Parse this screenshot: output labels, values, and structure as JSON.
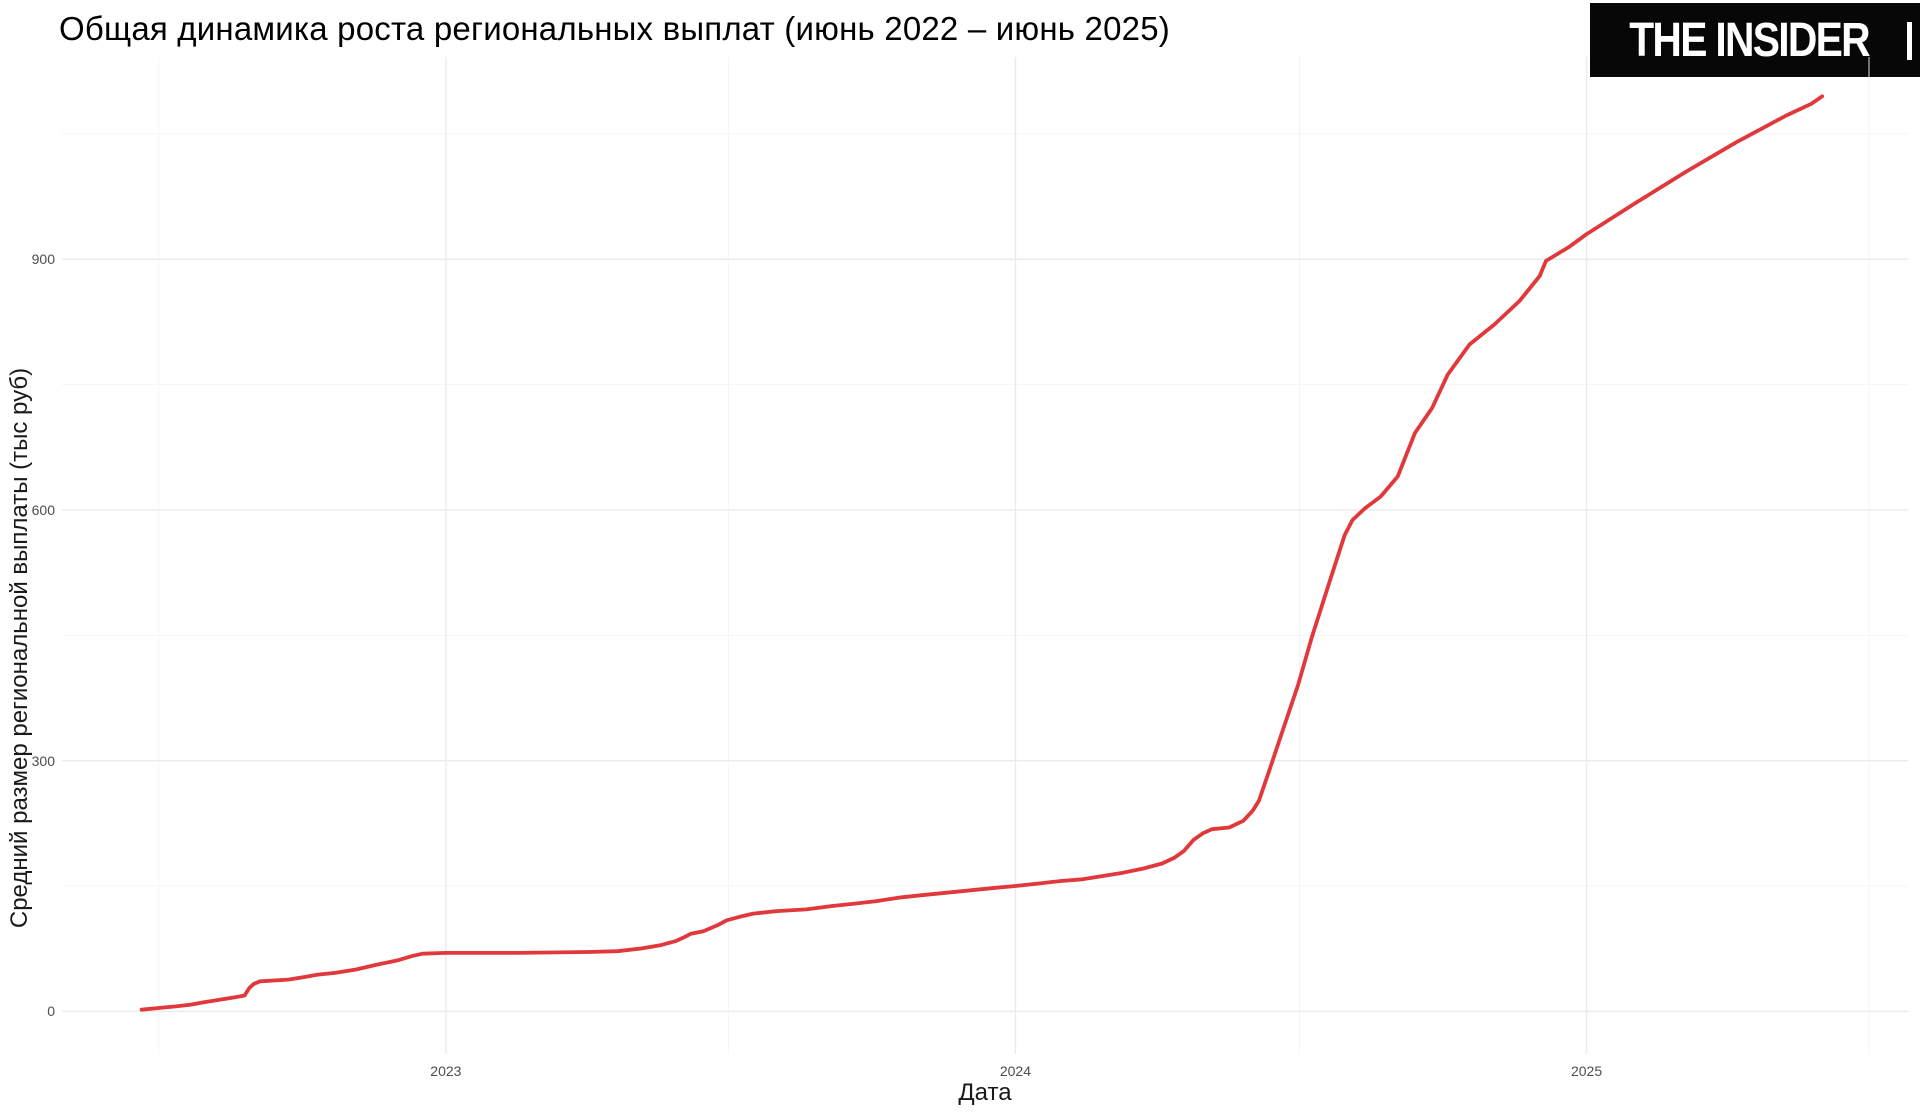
{
  "title": {
    "text": "Общая динамика роста региональных выплат (июнь 2022 – июнь 2025)"
  },
  "logo": {
    "text": "THE INSIDER"
  },
  "colors": {
    "background": "#ffffff",
    "title_text": "#000000",
    "axis_title_text": "#1a1a1a",
    "tick_text": "#4d4d4d",
    "grid_major": "#ebebeb",
    "grid_minor": "#f4f4f4",
    "line": "#e0383b",
    "logo_bg": "#070707",
    "logo_fg": "#ffffff"
  },
  "chart_data": {
    "type": "line",
    "title": "Общая динамика роста региональных выплат (июнь 2022 – июнь 2025)",
    "xlabel": "Дата",
    "ylabel": "Средний размер региональной выплаты (тыс руб)",
    "legend_position": "none",
    "grid": true,
    "x_domain": [
      "2022-04-30",
      "2025-07-26"
    ],
    "y_domain": [
      -51,
      1142
    ],
    "x_ticks": [
      {
        "date": "2023-01-01",
        "label": "2023"
      },
      {
        "date": "2024-01-01",
        "label": "2024"
      },
      {
        "date": "2025-01-01",
        "label": "2025"
      }
    ],
    "x_minor_ticks": [
      "2022-07-01",
      "2023-07-01",
      "2024-07-01",
      "2025-07-01"
    ],
    "y_ticks": [
      {
        "value": 0,
        "label": "0"
      },
      {
        "value": 300,
        "label": "300"
      },
      {
        "value": 600,
        "label": "600"
      },
      {
        "value": 900,
        "label": "900"
      }
    ],
    "y_minor_ticks": [
      150,
      450,
      750,
      1050
    ],
    "series": [
      {
        "name": "Средний размер региональной выплаты (тыс руб)",
        "color": "#e0383b",
        "points": [
          [
            "2022-06-20",
            2
          ],
          [
            "2022-07-01",
            4
          ],
          [
            "2022-07-12",
            6
          ],
          [
            "2022-07-21",
            8
          ],
          [
            "2022-07-30",
            11
          ],
          [
            "2022-08-09",
            14
          ],
          [
            "2022-08-19",
            17
          ],
          [
            "2022-08-25",
            19
          ],
          [
            "2022-08-28",
            28
          ],
          [
            "2022-08-31",
            33
          ],
          [
            "2022-09-04",
            36
          ],
          [
            "2022-09-22",
            38
          ],
          [
            "2022-10-02",
            41
          ],
          [
            "2022-10-11",
            44
          ],
          [
            "2022-10-22",
            46
          ],
          [
            "2022-11-04",
            50
          ],
          [
            "2022-11-18",
            56
          ],
          [
            "2022-12-01",
            61
          ],
          [
            "2022-12-10",
            66
          ],
          [
            "2022-12-17",
            69
          ],
          [
            "2023-01-01",
            70
          ],
          [
            "2023-02-16",
            70
          ],
          [
            "2023-04-02",
            71
          ],
          [
            "2023-04-21",
            72
          ],
          [
            "2023-05-05",
            75
          ],
          [
            "2023-05-18",
            79
          ],
          [
            "2023-05-28",
            84
          ],
          [
            "2023-06-02",
            88
          ],
          [
            "2023-06-07",
            93
          ],
          [
            "2023-06-15",
            96
          ],
          [
            "2023-06-24",
            103
          ],
          [
            "2023-06-30",
            109
          ],
          [
            "2023-07-08",
            113
          ],
          [
            "2023-07-17",
            117
          ],
          [
            "2023-08-01",
            120
          ],
          [
            "2023-08-20",
            122
          ],
          [
            "2023-09-05",
            126
          ],
          [
            "2023-09-20",
            129
          ],
          [
            "2023-10-04",
            132
          ],
          [
            "2023-10-18",
            136
          ],
          [
            "2023-11-02",
            139
          ],
          [
            "2023-11-18",
            142
          ],
          [
            "2023-12-04",
            145
          ],
          [
            "2023-12-20",
            148
          ],
          [
            "2024-01-01",
            150
          ],
          [
            "2024-01-16",
            153
          ],
          [
            "2024-01-30",
            156
          ],
          [
            "2024-02-13",
            158
          ],
          [
            "2024-02-26",
            162
          ],
          [
            "2024-03-10",
            166
          ],
          [
            "2024-03-23",
            171
          ],
          [
            "2024-04-04",
            177
          ],
          [
            "2024-04-12",
            184
          ],
          [
            "2024-04-18",
            192
          ],
          [
            "2024-04-24",
            205
          ],
          [
            "2024-04-30",
            213
          ],
          [
            "2024-05-06",
            218
          ],
          [
            "2024-05-17",
            220
          ],
          [
            "2024-05-26",
            228
          ],
          [
            "2024-06-01",
            240
          ],
          [
            "2024-06-05",
            252
          ],
          [
            "2024-06-12",
            290
          ],
          [
            "2024-06-21",
            340
          ],
          [
            "2024-06-30",
            390
          ],
          [
            "2024-07-09",
            448
          ],
          [
            "2024-07-21",
            518
          ],
          [
            "2024-07-30",
            570
          ],
          [
            "2024-08-04",
            588
          ],
          [
            "2024-08-12",
            602
          ],
          [
            "2024-08-22",
            616
          ],
          [
            "2024-09-02",
            640
          ],
          [
            "2024-09-13",
            692
          ],
          [
            "2024-09-24",
            722
          ],
          [
            "2024-10-04",
            762
          ],
          [
            "2024-10-18",
            798
          ],
          [
            "2024-11-03",
            822
          ],
          [
            "2024-11-19",
            850
          ],
          [
            "2024-12-02",
            880
          ],
          [
            "2024-12-06",
            898
          ],
          [
            "2024-12-21",
            915
          ],
          [
            "2025-01-01",
            930
          ],
          [
            "2025-02-02",
            968
          ],
          [
            "2025-03-06",
            1005
          ],
          [
            "2025-04-07",
            1040
          ],
          [
            "2025-05-09",
            1072
          ],
          [
            "2025-05-25",
            1086
          ],
          [
            "2025-06-01",
            1095
          ]
        ]
      }
    ]
  }
}
